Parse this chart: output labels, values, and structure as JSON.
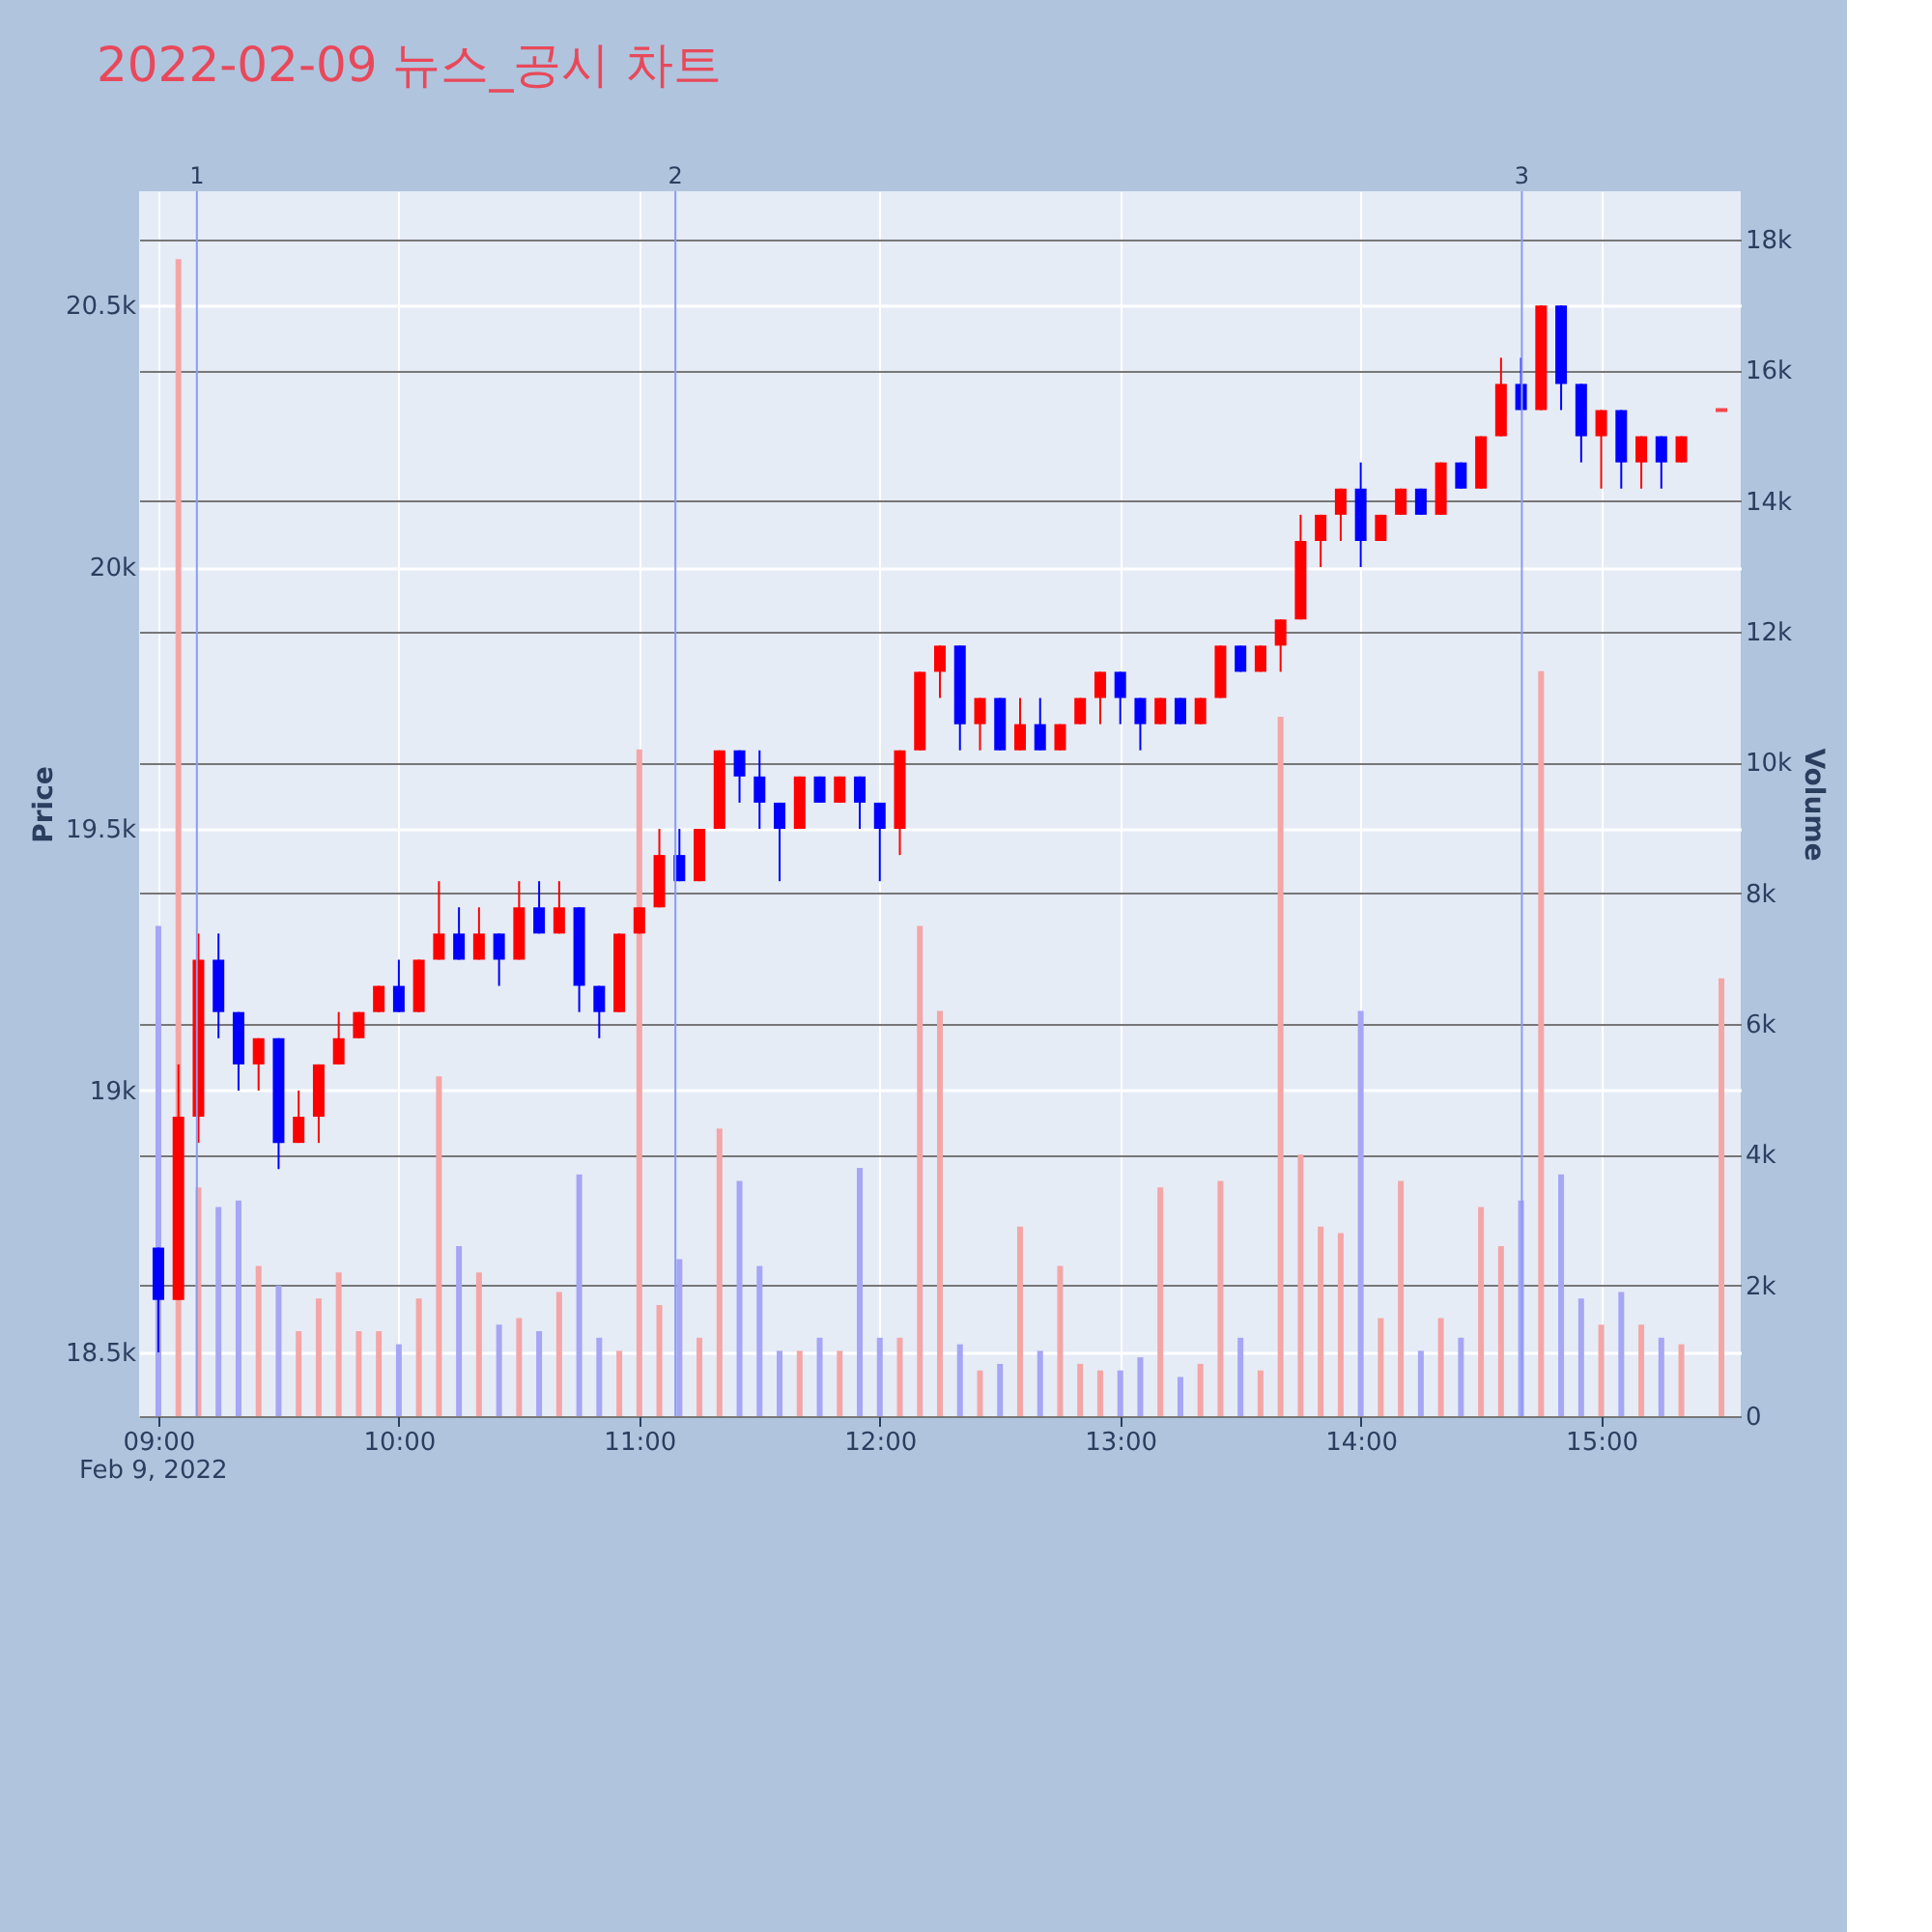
{
  "chart_data": {
    "type": "candlestick",
    "title": "2022-02-09 뉴스_공시 차트",
    "annotations": [
      "Feb 9, 2022",
      "1",
      "2",
      "3"
    ],
    "ylabel": "Price",
    "y2label": "Volume",
    "x": [
      9,
      9.0833,
      9.1667,
      9.25,
      9.3333,
      9.4167,
      9.5,
      9.5833,
      9.6667,
      9.75,
      9.8333,
      9.9167,
      10,
      10.0833,
      10.1667,
      10.25,
      10.3333,
      10.4167,
      10.5,
      10.5833,
      10.6667,
      10.75,
      10.8333,
      10.9167,
      11,
      11.0833,
      11.1667,
      11.25,
      11.3333,
      11.4167,
      11.5,
      11.5833,
      11.6667,
      11.75,
      11.8333,
      11.9167,
      12,
      12.0833,
      12.1667,
      12.25,
      12.3333,
      12.4167,
      12.5,
      12.5833,
      12.6667,
      12.75,
      12.8333,
      12.9167,
      13,
      13.0833,
      13.1667,
      13.25,
      13.3333,
      13.4167,
      13.5,
      13.5833,
      13.6667,
      13.75,
      13.8333,
      13.9167,
      14,
      14.0833,
      14.1667,
      14.25,
      14.3333,
      14.4167,
      14.5,
      14.5833,
      14.6667,
      14.75,
      14.8333,
      14.9167,
      15,
      15.0833,
      15.1667,
      15.25,
      15.3333,
      15.5
    ],
    "xlim": [
      8.96,
      15.54
    ],
    "xticks": [
      {
        "value": 9,
        "label": "09:00"
      },
      {
        "value": 10,
        "label": "10:00"
      },
      {
        "value": 11,
        "label": "11:00"
      },
      {
        "value": 12,
        "label": "12:00"
      },
      {
        "value": 13,
        "label": "13:00"
      },
      {
        "value": 14,
        "label": "14:00"
      },
      {
        "value": 15,
        "label": "15:00"
      }
    ],
    "ylim": [
      18378,
      20718
    ],
    "yticks": [
      {
        "value": 18500,
        "label": "18.5k"
      },
      {
        "value": 19000,
        "label": "19k"
      },
      {
        "value": 19500,
        "label": "19.5k"
      },
      {
        "value": 20000,
        "label": "20k"
      },
      {
        "value": 20500,
        "label": "20.5k"
      }
    ],
    "y2lim": [
      0,
      18740
    ],
    "y2ticks": [
      0,
      {
        "value": 2000,
        "label": "2k"
      },
      {
        "value": 4000,
        "label": "4k"
      },
      {
        "value": 6000,
        "label": "6k"
      },
      {
        "value": 8000,
        "label": "8k"
      },
      {
        "value": 10000,
        "label": "10k"
      },
      {
        "value": 12000,
        "label": "12k"
      },
      {
        "value": 14000,
        "label": "14k"
      },
      {
        "value": 16000,
        "label": "16k"
      },
      {
        "value": 18000,
        "label": "18k"
      }
    ],
    "grid": true,
    "ref_lines": [
      {
        "axis": "x",
        "value": 9.16,
        "color": "#8a9cf0"
      },
      {
        "axis": "x",
        "value": 11.15,
        "color": "#8a9cf0"
      },
      {
        "axis": "x",
        "value": 14.67,
        "color": "#8a9cf0"
      }
    ],
    "series": [
      {
        "type": "candlestick",
        "ohlc": [
          [
            18700,
            18700,
            18500,
            18600
          ],
          [
            18600,
            19050,
            18600,
            18950
          ],
          [
            18950,
            19300,
            18900,
            19250
          ],
          [
            19250,
            19300,
            19100,
            19150
          ],
          [
            19150,
            19150,
            19000,
            19050
          ],
          [
            19050,
            19100,
            19000,
            19100
          ],
          [
            19100,
            19100,
            18850,
            18900
          ],
          [
            18900,
            19000,
            18900,
            18950
          ],
          [
            18950,
            19050,
            18900,
            19050
          ],
          [
            19050,
            19150,
            19050,
            19100
          ],
          [
            19100,
            19150,
            19100,
            19150
          ],
          [
            19150,
            19200,
            19150,
            19200
          ],
          [
            19200,
            19250,
            19150,
            19150
          ],
          [
            19150,
            19250,
            19150,
            19250
          ],
          [
            19250,
            19400,
            19250,
            19300
          ],
          [
            19300,
            19350,
            19250,
            19250
          ],
          [
            19250,
            19350,
            19250,
            19300
          ],
          [
            19300,
            19300,
            19200,
            19250
          ],
          [
            19250,
            19400,
            19250,
            19350
          ],
          [
            19350,
            19400,
            19300,
            19300
          ],
          [
            19300,
            19400,
            19300,
            19350
          ],
          [
            19350,
            19350,
            19150,
            19200
          ],
          [
            19200,
            19200,
            19100,
            19150
          ],
          [
            19150,
            19300,
            19150,
            19300
          ],
          [
            19300,
            19350,
            19300,
            19350
          ],
          [
            19350,
            19500,
            19350,
            19450
          ],
          [
            19450,
            19500,
            19400,
            19400
          ],
          [
            19400,
            19500,
            19400,
            19500
          ],
          [
            19500,
            19650,
            19500,
            19650
          ],
          [
            19650,
            19650,
            19550,
            19600
          ],
          [
            19600,
            19650,
            19500,
            19550
          ],
          [
            19550,
            19550,
            19400,
            19500
          ],
          [
            19500,
            19600,
            19500,
            19600
          ],
          [
            19600,
            19600,
            19550,
            19550
          ],
          [
            19550,
            19600,
            19550,
            19600
          ],
          [
            19600,
            19600,
            19500,
            19550
          ],
          [
            19550,
            19550,
            19400,
            19500
          ],
          [
            19500,
            19650,
            19450,
            19650
          ],
          [
            19650,
            19800,
            19650,
            19800
          ],
          [
            19800,
            19850,
            19750,
            19850
          ],
          [
            19850,
            19850,
            19650,
            19700
          ],
          [
            19700,
            19750,
            19650,
            19750
          ],
          [
            19750,
            19750,
            19650,
            19650
          ],
          [
            19650,
            19750,
            19650,
            19700
          ],
          [
            19700,
            19750,
            19650,
            19650
          ],
          [
            19650,
            19700,
            19650,
            19700
          ],
          [
            19700,
            19750,
            19700,
            19750
          ],
          [
            19750,
            19800,
            19700,
            19800
          ],
          [
            19800,
            19800,
            19700,
            19750
          ],
          [
            19750,
            19750,
            19650,
            19700
          ],
          [
            19700,
            19750,
            19700,
            19750
          ],
          [
            19750,
            19750,
            19700,
            19700
          ],
          [
            19700,
            19750,
            19700,
            19750
          ],
          [
            19750,
            19850,
            19750,
            19850
          ],
          [
            19850,
            19850,
            19800,
            19800
          ],
          [
            19800,
            19850,
            19800,
            19850
          ],
          [
            19850,
            19900,
            19800,
            19900
          ],
          [
            19900,
            20100,
            19900,
            20050
          ],
          [
            20050,
            20100,
            20000,
            20100
          ],
          [
            20100,
            20150,
            20050,
            20150
          ],
          [
            20150,
            20200,
            20000,
            20050
          ],
          [
            20050,
            20100,
            20050,
            20100
          ],
          [
            20100,
            20150,
            20100,
            20150
          ],
          [
            20150,
            20150,
            20100,
            20100
          ],
          [
            20100,
            20200,
            20100,
            20200
          ],
          [
            20200,
            20200,
            20150,
            20150
          ],
          [
            20150,
            20250,
            20150,
            20250
          ],
          [
            20250,
            20400,
            20250,
            20350
          ],
          [
            20350,
            20400,
            20300,
            20300
          ],
          [
            20300,
            20500,
            20300,
            20500
          ],
          [
            20500,
            20500,
            20300,
            20350
          ],
          [
            20350,
            20350,
            20200,
            20250
          ],
          [
            20250,
            20300,
            20150,
            20300
          ],
          [
            20300,
            20300,
            20150,
            20200
          ],
          [
            20200,
            20250,
            20150,
            20250
          ],
          [
            20250,
            20250,
            20150,
            20200
          ],
          [
            20200,
            20250,
            20200,
            20250
          ],
          [
            20300,
            20300,
            20300,
            20300
          ]
        ],
        "colors": [
          "#0000ff",
          "#ff0000",
          "#ff0000",
          "#0000ff",
          "#0000ff",
          "#ff0000",
          "#0000ff",
          "#ff0000",
          "#ff0000",
          "#ff0000",
          "#ff0000",
          "#ff0000",
          "#0000ff",
          "#ff0000",
          "#ff0000",
          "#0000ff",
          "#ff0000",
          "#0000ff",
          "#ff0000",
          "#0000ff",
          "#ff0000",
          "#0000ff",
          "#0000ff",
          "#ff0000",
          "#ff0000",
          "#ff0000",
          "#0000ff",
          "#ff0000",
          "#ff0000",
          "#0000ff",
          "#0000ff",
          "#0000ff",
          "#ff0000",
          "#0000ff",
          "#ff0000",
          "#0000ff",
          "#0000ff",
          "#ff0000",
          "#ff0000",
          "#ff0000",
          "#0000ff",
          "#ff0000",
          "#0000ff",
          "#ff0000",
          "#0000ff",
          "#ff0000",
          "#ff0000",
          "#ff0000",
          "#0000ff",
          "#0000ff",
          "#ff0000",
          "#0000ff",
          "#ff0000",
          "#ff0000",
          "#0000ff",
          "#ff0000",
          "#ff0000",
          "#ff0000",
          "#ff0000",
          "#ff0000",
          "#0000ff",
          "#ff0000",
          "#ff0000",
          "#0000ff",
          "#ff0000",
          "#0000ff",
          "#ff0000",
          "#ff0000",
          "#0000ff",
          "#ff0000",
          "#0000ff",
          "#0000ff",
          "#ff0000",
          "#0000ff",
          "#ff0000",
          "#0000ff",
          "#ff0000",
          "#ff0000"
        ]
      },
      {
        "type": "bar",
        "axis": "y2",
        "values": [
          7500,
          17700,
          3500,
          3200,
          3300,
          2300,
          2000,
          1300,
          1800,
          2200,
          1300,
          1300,
          1100,
          1800,
          5200,
          2600,
          2200,
          1400,
          1500,
          1300,
          1900,
          3700,
          1200,
          1000,
          10200,
          1700,
          2400,
          1200,
          4400,
          3600,
          2300,
          1000,
          1000,
          1200,
          1000,
          3800,
          1200,
          1200,
          7500,
          6200,
          1100,
          700,
          800,
          2900,
          1000,
          2300,
          800,
          700,
          700,
          900,
          3500,
          600,
          800,
          3600,
          1200,
          700,
          10700,
          4000,
          2900,
          2800,
          6200,
          1500,
          3600,
          1000,
          1500,
          1200,
          3200,
          2600,
          3300,
          11400,
          3700,
          1800,
          1400,
          1900,
          1400,
          1200,
          1100,
          6700
        ],
        "colors": [
          "#a6a6f4",
          "#f4a6a6",
          "#f4a6a6",
          "#a6a6f4",
          "#a6a6f4",
          "#f4a6a6",
          "#a6a6f4",
          "#f4a6a6",
          "#f4a6a6",
          "#f4a6a6",
          "#f4a6a6",
          "#f4a6a6",
          "#a6a6f4",
          "#f4a6a6",
          "#f4a6a6",
          "#a6a6f4",
          "#f4a6a6",
          "#a6a6f4",
          "#f4a6a6",
          "#a6a6f4",
          "#f4a6a6",
          "#a6a6f4",
          "#a6a6f4",
          "#f4a6a6",
          "#f4a6a6",
          "#f4a6a6",
          "#a6a6f4",
          "#f4a6a6",
          "#f4a6a6",
          "#a6a6f4",
          "#a6a6f4",
          "#a6a6f4",
          "#f4a6a6",
          "#a6a6f4",
          "#f4a6a6",
          "#a6a6f4",
          "#a6a6f4",
          "#f4a6a6",
          "#f4a6a6",
          "#f4a6a6",
          "#a6a6f4",
          "#f4a6a6",
          "#a6a6f4",
          "#f4a6a6",
          "#a6a6f4",
          "#f4a6a6",
          "#f4a6a6",
          "#f4a6a6",
          "#a6a6f4",
          "#a6a6f4",
          "#f4a6a6",
          "#a6a6f4",
          "#f4a6a6",
          "#f4a6a6",
          "#a6a6f4",
          "#f4a6a6",
          "#f4a6a6",
          "#f4a6a6",
          "#f4a6a6",
          "#f4a6a6",
          "#a6a6f4",
          "#f4a6a6",
          "#f4a6a6",
          "#a6a6f4",
          "#f4a6a6",
          "#a6a6f4",
          "#f4a6a6",
          "#f4a6a6",
          "#a6a6f4",
          "#f4a6a6",
          "#a6a6f4",
          "#a6a6f4",
          "#f4a6a6",
          "#a6a6f4",
          "#f4a6a6",
          "#a6a6f4",
          "#f4a6a6",
          "#f4a6a6"
        ]
      }
    ]
  }
}
